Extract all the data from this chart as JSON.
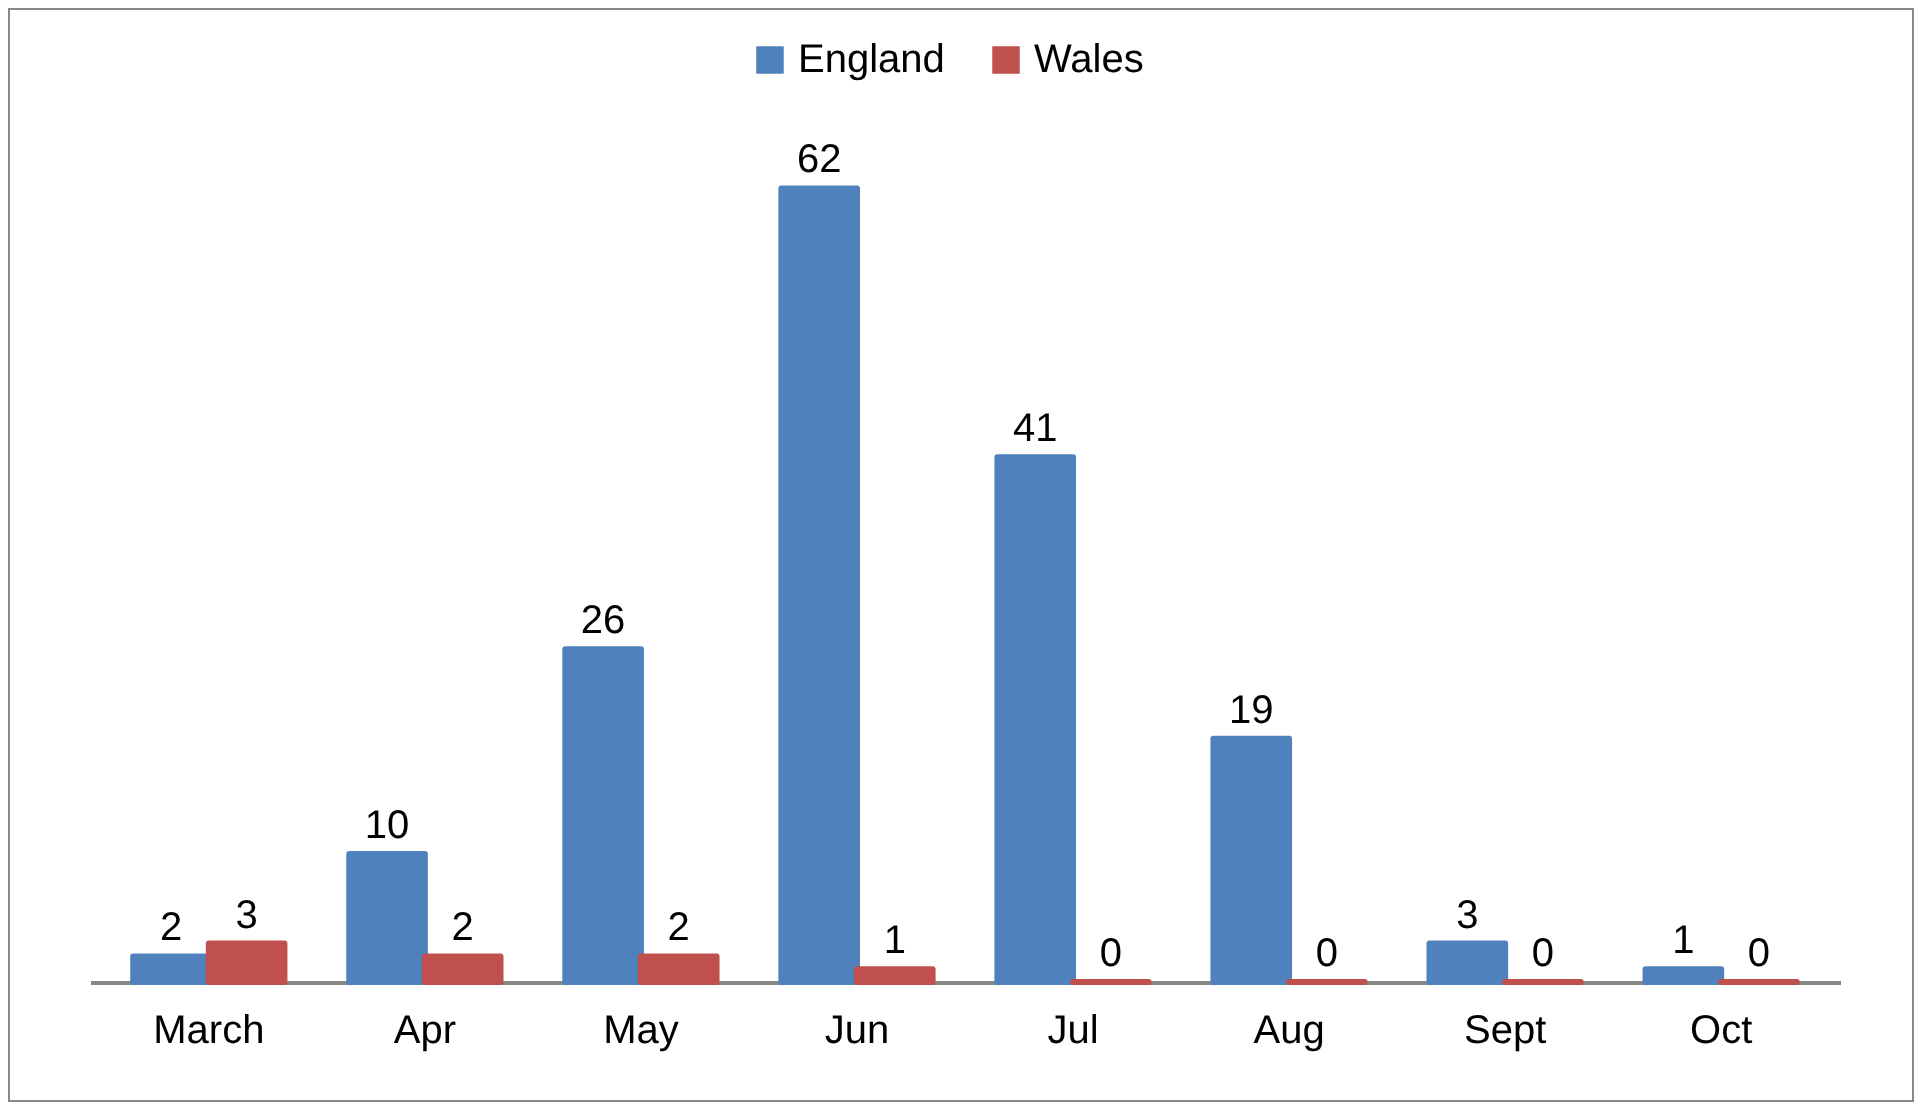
{
  "chart_data": {
    "type": "bar",
    "categories": [
      "March",
      "Apr",
      "May",
      "Jun",
      "Jul",
      "Aug",
      "Sept",
      "Oct"
    ],
    "series": [
      {
        "name": "England",
        "color": "#4f81bd",
        "values": [
          2,
          10,
          26,
          62,
          41,
          19,
          3,
          1
        ]
      },
      {
        "name": "Wales",
        "color": "#c0504d",
        "values": [
          3,
          2,
          2,
          1,
          0,
          0,
          0,
          0
        ]
      }
    ],
    "data_labels": true,
    "legend": "top",
    "grid": false
  }
}
